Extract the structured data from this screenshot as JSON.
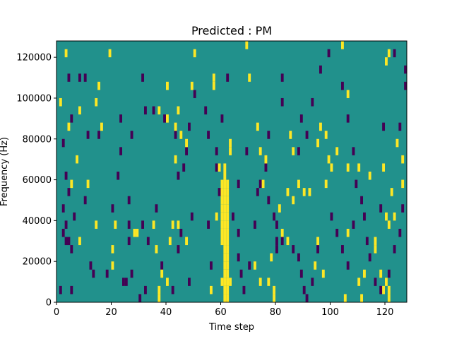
{
  "chart_data": {
    "type": "heatmap",
    "title": "Predicted : PM",
    "xlabel": "Time step",
    "ylabel": "Frequency (Hz)",
    "xlim": [
      0,
      128
    ],
    "ylim": [
      0,
      128000
    ],
    "x_ticks": [
      0,
      20,
      40,
      60,
      80,
      100,
      120
    ],
    "y_ticks": [
      0,
      20000,
      40000,
      60000,
      80000,
      100000,
      120000
    ],
    "grid": false,
    "colormap": "viridis",
    "background_value": 0.5,
    "colors": {
      "background": "#21918c",
      "high": "#fde725",
      "low": "#440154"
    },
    "cell_height_hz": 4000,
    "cells_high": [
      [
        61,
        2000
      ],
      [
        62,
        2000
      ],
      [
        61,
        6000
      ],
      [
        62,
        6000
      ],
      [
        60,
        10000
      ],
      [
        61,
        10000
      ],
      [
        62,
        10000
      ],
      [
        63,
        10000
      ],
      [
        61,
        14000
      ],
      [
        62,
        14000
      ],
      [
        61,
        18000
      ],
      [
        62,
        18000
      ],
      [
        61,
        22000
      ],
      [
        62,
        22000
      ],
      [
        61,
        26000
      ],
      [
        62,
        26000
      ],
      [
        60,
        30000
      ],
      [
        61,
        30000
      ],
      [
        62,
        30000
      ],
      [
        60,
        34000
      ],
      [
        61,
        34000
      ],
      [
        62,
        34000
      ],
      [
        60,
        38000
      ],
      [
        61,
        38000
      ],
      [
        62,
        38000
      ],
      [
        60,
        42000
      ],
      [
        61,
        42000
      ],
      [
        62,
        42000
      ],
      [
        60,
        46000
      ],
      [
        61,
        46000
      ],
      [
        62,
        46000
      ],
      [
        60,
        50000
      ],
      [
        61,
        50000
      ],
      [
        62,
        50000
      ],
      [
        60,
        54000
      ],
      [
        61,
        54000
      ],
      [
        62,
        54000
      ],
      [
        60,
        58000
      ],
      [
        61,
        58000
      ],
      [
        62,
        58000
      ],
      [
        61,
        62000
      ],
      [
        61,
        66000
      ],
      [
        57,
        106000
      ],
      [
        57,
        110000
      ],
      [
        58,
        42000
      ],
      [
        56,
        6000
      ],
      [
        59,
        66000
      ],
      [
        63,
        78000
      ],
      [
        63,
        74000
      ],
      [
        37,
        2000
      ],
      [
        37,
        6000
      ],
      [
        40,
        10000
      ],
      [
        38,
        14000
      ],
      [
        36,
        26000
      ],
      [
        35,
        38000
      ],
      [
        28,
        34000
      ],
      [
        29,
        34000
      ],
      [
        21,
        38000
      ],
      [
        20,
        18000
      ],
      [
        20,
        26000
      ],
      [
        41,
        30000
      ],
      [
        42,
        38000
      ],
      [
        44,
        38000
      ],
      [
        47,
        30000
      ],
      [
        43,
        70000
      ],
      [
        45,
        82000
      ],
      [
        47,
        78000
      ],
      [
        43,
        86000
      ],
      [
        40,
        90000
      ],
      [
        37,
        94000
      ],
      [
        44,
        94000
      ],
      [
        1,
        98000
      ],
      [
        8,
        94000
      ],
      [
        4,
        86000
      ],
      [
        16,
        86000
      ],
      [
        7,
        70000
      ],
      [
        11,
        58000
      ],
      [
        14,
        38000
      ],
      [
        8,
        30000
      ],
      [
        5,
        58000
      ],
      [
        3,
        122000
      ],
      [
        14,
        98000
      ],
      [
        15,
        106000
      ],
      [
        19,
        122000
      ],
      [
        40,
        106000
      ],
      [
        49,
        106000
      ],
      [
        50,
        122000
      ],
      [
        69,
        126000
      ],
      [
        70,
        110000
      ],
      [
        73,
        86000
      ],
      [
        74,
        74000
      ],
      [
        76,
        70000
      ],
      [
        75,
        58000
      ],
      [
        81,
        46000
      ],
      [
        82,
        34000
      ],
      [
        84,
        30000
      ],
      [
        78,
        22000
      ],
      [
        72,
        18000
      ],
      [
        74,
        10000
      ],
      [
        77,
        10000
      ],
      [
        79,
        6000
      ],
      [
        79,
        2000
      ],
      [
        94,
        18000
      ],
      [
        97,
        14000
      ],
      [
        95,
        30000
      ],
      [
        98,
        58000
      ],
      [
        99,
        70000
      ],
      [
        100,
        66000
      ],
      [
        98,
        82000
      ],
      [
        96,
        86000
      ],
      [
        95,
        78000
      ],
      [
        102,
        74000
      ],
      [
        106,
        66000
      ],
      [
        110,
        66000
      ],
      [
        114,
        62000
      ],
      [
        122,
        54000
      ],
      [
        120,
        42000
      ],
      [
        121,
        38000
      ],
      [
        116,
        30000
      ],
      [
        116,
        26000
      ],
      [
        112,
        14000
      ],
      [
        118,
        14000
      ],
      [
        119,
        6000
      ],
      [
        120,
        10000
      ],
      [
        105,
        2000
      ],
      [
        111,
        2000
      ],
      [
        121,
        2000
      ],
      [
        121,
        6000
      ],
      [
        110,
        10000
      ],
      [
        106,
        102000
      ],
      [
        120,
        118000
      ],
      [
        121,
        122000
      ],
      [
        104,
        126000
      ],
      [
        106,
        34000
      ],
      [
        88,
        58000
      ],
      [
        86,
        74000
      ],
      [
        85,
        82000
      ],
      [
        123,
        42000
      ],
      [
        119,
        66000
      ],
      [
        124,
        78000
      ],
      [
        126,
        58000
      ],
      [
        126,
        70000
      ],
      [
        90,
        54000
      ],
      [
        92,
        54000
      ],
      [
        84,
        54000
      ],
      [
        86,
        50000
      ]
    ],
    "cells_low": [
      [
        1,
        6000
      ],
      [
        5,
        6000
      ],
      [
        12,
        18000
      ],
      [
        13,
        14000
      ],
      [
        24,
        10000
      ],
      [
        25,
        10000
      ],
      [
        27,
        14000
      ],
      [
        30,
        2000
      ],
      [
        32,
        6000
      ],
      [
        38,
        18000
      ],
      [
        42,
        6000
      ],
      [
        48,
        10000
      ],
      [
        44,
        26000
      ],
      [
        45,
        34000
      ],
      [
        49,
        42000
      ],
      [
        55,
        38000
      ],
      [
        56,
        18000
      ],
      [
        26,
        50000
      ],
      [
        26,
        38000
      ],
      [
        26,
        30000
      ],
      [
        31,
        38000
      ],
      [
        3,
        30000
      ],
      [
        4,
        30000
      ],
      [
        2,
        34000
      ],
      [
        3,
        38000
      ],
      [
        2,
        46000
      ],
      [
        4,
        54000
      ],
      [
        3,
        62000
      ],
      [
        2,
        78000
      ],
      [
        11,
        82000
      ],
      [
        5,
        90000
      ],
      [
        4,
        110000
      ],
      [
        10,
        110000
      ],
      [
        15,
        82000
      ],
      [
        23,
        74000
      ],
      [
        23,
        90000
      ],
      [
        27,
        82000
      ],
      [
        31,
        110000
      ],
      [
        32,
        94000
      ],
      [
        35,
        94000
      ],
      [
        39,
        90000
      ],
      [
        43,
        82000
      ],
      [
        46,
        66000
      ],
      [
        47,
        74000
      ],
      [
        48,
        86000
      ],
      [
        50,
        102000
      ],
      [
        54,
        94000
      ],
      [
        55,
        82000
      ],
      [
        58,
        66000
      ],
      [
        58,
        74000
      ],
      [
        62,
        110000
      ],
      [
        64,
        42000
      ],
      [
        66,
        58000
      ],
      [
        66,
        34000
      ],
      [
        66,
        22000
      ],
      [
        67,
        14000
      ],
      [
        68,
        6000
      ],
      [
        70,
        18000
      ],
      [
        72,
        38000
      ],
      [
        73,
        54000
      ],
      [
        74,
        58000
      ],
      [
        76,
        66000
      ],
      [
        77,
        50000
      ],
      [
        79,
        42000
      ],
      [
        80,
        26000
      ],
      [
        80,
        30000
      ],
      [
        80,
        38000
      ],
      [
        82,
        30000
      ],
      [
        86,
        26000
      ],
      [
        88,
        22000
      ],
      [
        89,
        14000
      ],
      [
        90,
        6000
      ],
      [
        91,
        2000
      ],
      [
        93,
        10000
      ],
      [
        95,
        26000
      ],
      [
        88,
        74000
      ],
      [
        89,
        90000
      ],
      [
        91,
        82000
      ],
      [
        93,
        98000
      ],
      [
        96,
        114000
      ],
      [
        99,
        122000
      ],
      [
        104,
        106000
      ],
      [
        106,
        90000
      ],
      [
        108,
        74000
      ],
      [
        109,
        58000
      ],
      [
        111,
        50000
      ],
      [
        112,
        42000
      ],
      [
        113,
        30000
      ],
      [
        114,
        22000
      ],
      [
        116,
        10000
      ],
      [
        118,
        6000
      ],
      [
        121,
        14000
      ],
      [
        123,
        26000
      ],
      [
        125,
        34000
      ],
      [
        126,
        46000
      ],
      [
        127,
        106000
      ],
      [
        127,
        114000
      ],
      [
        125,
        86000
      ],
      [
        123,
        122000
      ],
      [
        82,
        98000
      ],
      [
        82,
        110000
      ],
      [
        77,
        82000
      ],
      [
        69,
        74000
      ],
      [
        59,
        54000
      ],
      [
        60,
        90000
      ],
      [
        44,
        62000
      ],
      [
        36,
        46000
      ],
      [
        33,
        30000
      ],
      [
        22,
        62000
      ],
      [
        18,
        14000
      ],
      [
        20,
        46000
      ],
      [
        10,
        50000
      ],
      [
        8,
        110000
      ],
      [
        6,
        42000
      ],
      [
        5,
        26000
      ],
      [
        100,
        42000
      ],
      [
        102,
        34000
      ],
      [
        104,
        26000
      ],
      [
        106,
        18000
      ],
      [
        108,
        38000
      ],
      [
        119,
        86000
      ],
      [
        118,
        46000
      ]
    ]
  }
}
